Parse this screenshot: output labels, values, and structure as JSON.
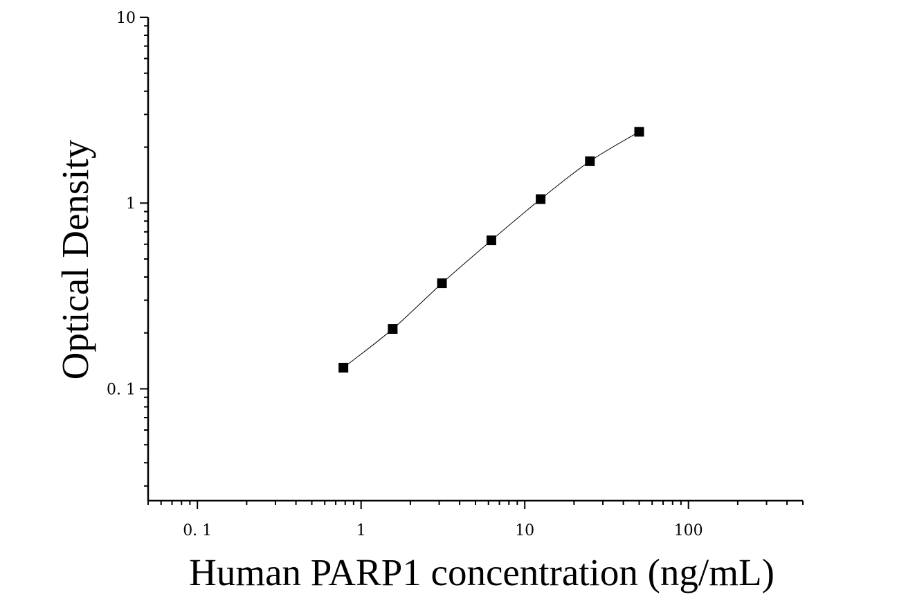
{
  "chart_data": {
    "type": "scatter",
    "title": "",
    "xlabel": "Human PARP1 concentration (ng/mL)",
    "ylabel": "Optical Density",
    "xscale": "log",
    "yscale": "log",
    "xlim": [
      0.05,
      500
    ],
    "ylim": [
      0.025,
      10
    ],
    "x_tick_labels": [
      {
        "value": 0.1,
        "label": "0. 1"
      },
      {
        "value": 1,
        "label": "1"
      },
      {
        "value": 10,
        "label": "10"
      },
      {
        "value": 100,
        "label": "100"
      }
    ],
    "y_tick_labels": [
      {
        "value": 0.1,
        "label": "0. 1"
      },
      {
        "value": 1,
        "label": "1"
      },
      {
        "value": 10,
        "label": "10"
      }
    ],
    "marker": "square",
    "fit_curve": true,
    "grid": false,
    "series": [
      {
        "x": [
          0.78,
          1.56,
          3.12,
          6.25,
          12.5,
          25,
          50
        ],
        "y": [
          0.13,
          0.21,
          0.37,
          0.63,
          1.05,
          1.68,
          2.42
        ]
      }
    ]
  }
}
